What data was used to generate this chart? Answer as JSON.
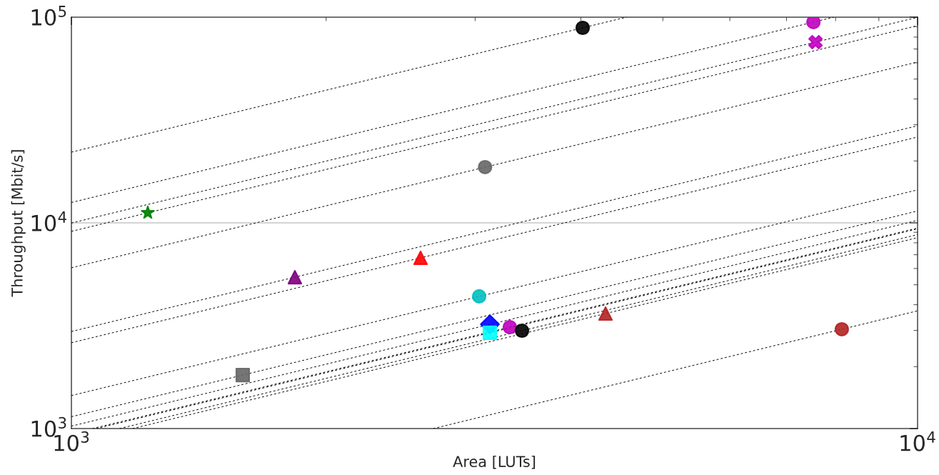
{
  "chart_data": {
    "type": "scatter",
    "xlabel": "Area [LUTs]",
    "ylabel": "Throughput [Mbit/s]",
    "log": "xy",
    "grid": "y",
    "legend": false,
    "xlim": [
      1000,
      10000
    ],
    "ylim": [
      1000,
      100000
    ],
    "xticks": [
      {
        "value": 1000,
        "label": "10$^{3}$"
      },
      {
        "value": 10000,
        "label": "10$^{4}$"
      }
    ],
    "yticks": [
      {
        "value": 1000,
        "label": "10$^{3}$"
      },
      {
        "value": 10000,
        "label": "10$^{4}$"
      },
      {
        "value": 100000,
        "label": "10$^{5}$"
      }
    ],
    "series": [
      {
        "type": "line",
        "line_style": "dashed",
        "color": "#000000",
        "x": [
          1000,
          10000
        ],
        "values": [
          9090,
          90900
        ]
      },
      {
        "type": "line",
        "line_style": "dashed",
        "color": "#000000",
        "x": [
          1000,
          10000
        ],
        "values": [
          2964,
          29640
        ]
      },
      {
        "type": "line",
        "line_style": "dashed",
        "color": "#000000",
        "x": [
          1000,
          10000
        ],
        "values": [
          1142,
          11420
        ]
      },
      {
        "type": "line",
        "line_style": "dashed",
        "color": "#000000",
        "x": [
          1000,
          10000
        ],
        "values": [
          2614,
          26140
        ]
      },
      {
        "type": "line",
        "line_style": "dashed",
        "color": "#000000",
        "x": [
          1000,
          10000
        ],
        "values": [
          6050,
          60500
        ]
      },
      {
        "type": "line",
        "line_style": "dashed",
        "color": "#000000",
        "x": [
          1000,
          10000
        ],
        "values": [
          1447,
          14470
        ]
      },
      {
        "type": "line",
        "line_style": "dashed",
        "color": "#000000",
        "x": [
          1000,
          10000
        ],
        "values": [
          1028,
          10280
        ]
      },
      {
        "type": "line",
        "line_style": "dashed",
        "color": "#000000",
        "x": [
          1070,
          10000
        ],
        "values": [
          1000,
          9350
        ]
      },
      {
        "type": "line",
        "line_style": "dashed",
        "color": "#000000",
        "x": [
          1059,
          10000
        ],
        "values": [
          1000,
          9440
        ]
      },
      {
        "type": "line",
        "line_style": "dashed",
        "color": "#000000",
        "x": [
          1140,
          10000
        ],
        "values": [
          1000,
          8770
        ]
      },
      {
        "type": "line",
        "line_style": "dashed",
        "color": "#000000",
        "x": [
          1181,
          10000
        ],
        "values": [
          1000,
          8470
        ]
      },
      {
        "type": "line",
        "line_style": "dashed",
        "color": "#000000",
        "x": [
          1000,
          4531
        ],
        "values": [
          22070,
          100000
        ]
      },
      {
        "type": "line",
        "line_style": "dashed",
        "color": "#000000",
        "x": [
          1000,
          7962
        ],
        "values": [
          12560,
          100000
        ]
      },
      {
        "type": "line",
        "line_style": "dashed",
        "color": "#000000",
        "x": [
          1000,
          10000
        ],
        "values": [
          9980,
          99800
        ]
      },
      {
        "type": "line",
        "line_style": "dashed",
        "color": "#000000",
        "x": [
          2677,
          10000
        ],
        "values": [
          1000,
          3735
        ]
      },
      {
        "type": "scatter",
        "marker": "star",
        "color": "#008000",
        "x": [
          1231
        ],
        "values": [
          11190
        ]
      },
      {
        "type": "scatter",
        "marker": "triangle",
        "color": "#800080",
        "x": [
          1837
        ],
        "values": [
          5445
        ]
      },
      {
        "type": "scatter",
        "marker": "square",
        "color": "#666666",
        "x": [
          1594
        ],
        "values": [
          1821
        ]
      },
      {
        "type": "scatter",
        "marker": "triangle",
        "color": "#ff0000",
        "x": [
          2586
        ],
        "values": [
          6760
        ]
      },
      {
        "type": "scatter",
        "marker": "circle",
        "color": "#666666",
        "x": [
          3082
        ],
        "values": [
          18660
        ]
      },
      {
        "type": "scatter",
        "marker": "circle",
        "color": "#00bfbf",
        "x": [
          3033
        ],
        "values": [
          4390
        ]
      },
      {
        "type": "scatter",
        "marker": "diamond",
        "color": "#0000ff",
        "x": [
          3123
        ],
        "values": [
          3212
        ]
      },
      {
        "type": "scatter",
        "marker": "square",
        "color": "#00ffff",
        "x": [
          3123
        ],
        "values": [
          2920
        ]
      },
      {
        "type": "scatter",
        "marker": "circle",
        "color": "#bf00bf",
        "x": [
          3297
        ],
        "values": [
          3112
        ]
      },
      {
        "type": "scatter",
        "marker": "circle",
        "color": "#000000",
        "x": [
          3408
        ],
        "values": [
          2990
        ]
      },
      {
        "type": "scatter",
        "marker": "triangle",
        "color": "#b22222",
        "x": [
          4278
        ],
        "values": [
          3624
        ]
      },
      {
        "type": "scatter",
        "marker": "circle",
        "color": "#000000",
        "x": [
          4020
        ],
        "values": [
          88700
        ]
      },
      {
        "type": "scatter",
        "marker": "circle",
        "color": "#bf00bf",
        "x": [
          7532
        ],
        "values": [
          94600
        ]
      },
      {
        "type": "scatter",
        "marker": "cross",
        "color": "#bf00bf",
        "x": [
          7575
        ],
        "values": [
          75600
        ]
      },
      {
        "type": "scatter",
        "marker": "circle",
        "color": "#b22222",
        "x": [
          8137
        ],
        "values": [
          3039
        ]
      }
    ]
  }
}
